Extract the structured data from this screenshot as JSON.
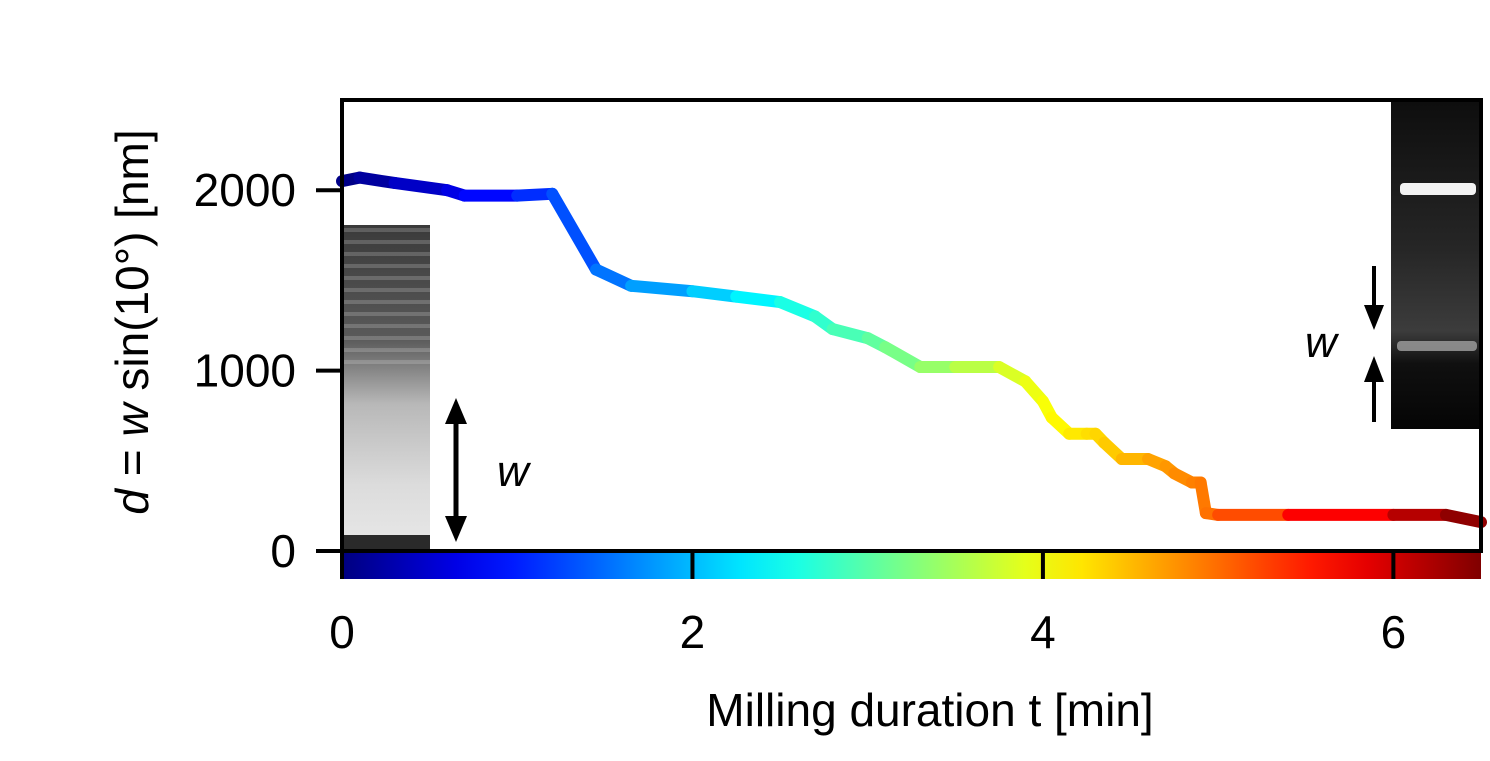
{
  "chart_data": {
    "type": "line",
    "xlabel": "Milling duration t [min]",
    "ylabel": {
      "prefix_italic": "d",
      "equals": " = ",
      "w_italic": "w",
      "rest": " sin(10°)  [nm]"
    },
    "xlim": [
      0,
      6.5
    ],
    "ylim": [
      0,
      2500
    ],
    "xticks": [
      0,
      2,
      4,
      6
    ],
    "yticks": [
      0,
      1000,
      2000
    ],
    "xtick_labels": [
      "0",
      "2",
      "4",
      "6"
    ],
    "ytick_labels": [
      "0",
      "1000",
      "2000"
    ],
    "grid": false,
    "colormap": "jet",
    "colorbar_axis": "x",
    "series": [
      {
        "color_by": "x",
        "x": [
          0.0,
          0.1,
          0.3,
          0.6,
          0.7,
          1.0,
          1.2,
          1.45,
          1.65,
          2.0,
          2.25,
          2.5,
          2.7,
          2.8,
          3.0,
          3.1,
          3.3,
          3.5,
          3.75,
          3.9,
          4.0,
          4.05,
          4.15,
          4.25,
          4.3,
          4.35,
          4.45,
          4.6,
          4.7,
          4.75,
          4.85,
          4.9,
          4.93,
          5.0,
          5.4,
          6.0,
          6.3,
          6.5
        ],
        "y": [
          2050,
          2070,
          2040,
          2000,
          1970,
          1970,
          1980,
          1560,
          1470,
          1440,
          1410,
          1380,
          1300,
          1230,
          1180,
          1130,
          1020,
          1020,
          1020,
          940,
          830,
          740,
          650,
          650,
          650,
          600,
          510,
          510,
          470,
          430,
          380,
          380,
          210,
          200,
          200,
          200,
          200,
          160
        ]
      }
    ],
    "annotations": [
      {
        "text": "w",
        "location": "left inset, double-headed vertical arrow"
      },
      {
        "text": "w",
        "location": "right inset, two opposing arrows"
      }
    ],
    "insets": [
      {
        "name": "left-micrograph",
        "location": "bottom-left"
      },
      {
        "name": "right-micrograph",
        "location": "top-right"
      }
    ]
  }
}
